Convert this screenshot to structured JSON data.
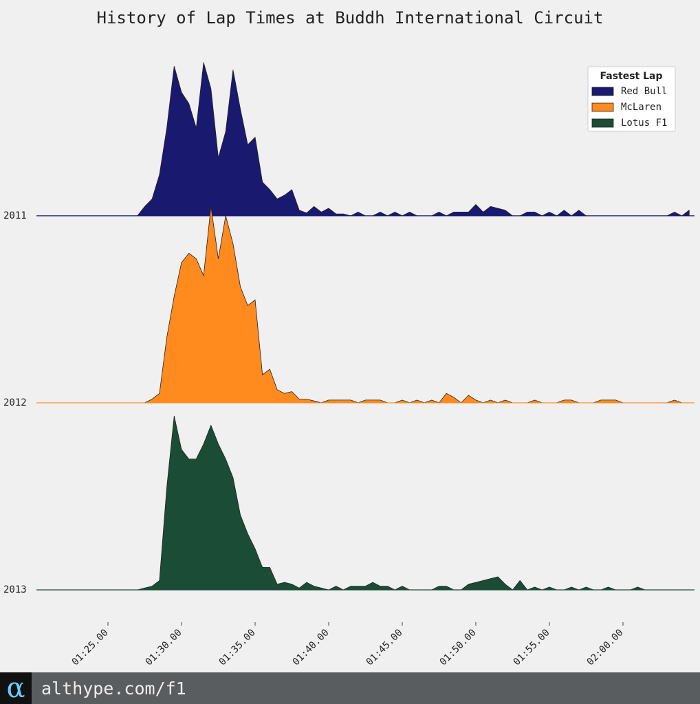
{
  "chart_data": {
    "type": "ridgeline",
    "title": "History of Lap Times at Buddh International Circuit",
    "x": [
      84,
      84.5,
      85,
      85.5,
      86,
      86.5,
      87,
      87.5,
      88,
      88.5,
      89,
      89.5,
      90,
      90.5,
      91,
      91.5,
      92,
      92.5,
      93,
      93.5,
      94,
      94.5,
      95,
      95.5,
      96,
      96.5,
      97,
      97.5,
      98,
      98.5,
      99,
      99.5,
      100,
      100.5,
      101,
      101.5,
      102,
      102.5,
      103,
      103.5,
      104,
      104.5,
      105,
      105.5,
      106,
      106.5,
      107,
      107.5,
      108,
      108.5,
      109,
      109.5,
      110,
      110.5,
      111,
      111.5,
      112,
      112.5,
      113,
      113.5,
      114,
      114.5,
      115,
      115.5,
      116,
      116.5,
      117,
      117.5,
      118,
      118.5,
      119,
      119.5,
      120,
      120.5,
      121,
      121.5,
      122,
      122.5,
      123,
      123.5,
      124,
      124.5
    ],
    "series": [
      {
        "name": "Red Bull",
        "color": "#191970",
        "values": [
          0,
          0,
          0,
          0,
          0,
          0,
          0,
          0.05,
          0.09,
          0.22,
          0.47,
          0.8,
          0.66,
          0.6,
          0.47,
          0.82,
          0.68,
          0.31,
          0.45,
          0.78,
          0.57,
          0.38,
          0.42,
          0.18,
          0.14,
          0.09,
          0.11,
          0.14,
          0.03,
          0.015,
          0.05,
          0.02,
          0.04,
          0.01,
          0.01,
          0,
          0.02,
          0,
          0,
          0.02,
          0,
          0.02,
          0,
          0.02,
          0,
          0,
          0,
          0.02,
          0,
          0.02,
          0.02,
          0.02,
          0.06,
          0.02,
          0.05,
          0.04,
          0.03,
          0,
          0,
          0.02,
          0.02,
          0,
          0.02,
          0,
          0.03,
          0,
          0.03,
          0,
          0,
          0,
          0,
          0,
          0,
          0,
          0,
          0,
          0,
          0,
          0,
          0.02,
          0,
          0.03
        ]
      },
      {
        "name": "McLaren",
        "color": "#ff8a1e",
        "values": [
          0,
          0,
          0,
          0,
          0,
          0,
          0,
          0,
          0.02,
          0.05,
          0.35,
          0.57,
          0.75,
          0.8,
          0.77,
          0.68,
          1.05,
          0.77,
          1.0,
          0.85,
          0.62,
          0.52,
          0.55,
          0.15,
          0.18,
          0.07,
          0.05,
          0.06,
          0.02,
          0.02,
          0.01,
          0,
          0.015,
          0.015,
          0.015,
          0.015,
          0,
          0.015,
          0.015,
          0.015,
          0,
          0,
          0.015,
          0,
          0.015,
          0,
          0.015,
          0,
          0.05,
          0.03,
          0,
          0.04,
          0.015,
          0,
          0.015,
          0,
          0.015,
          0,
          0,
          0,
          0.015,
          0,
          0,
          0,
          0.015,
          0.015,
          0,
          0,
          0,
          0.015,
          0.015,
          0.015,
          0,
          0,
          0,
          0,
          0,
          0,
          0,
          0.015,
          0,
          0
        ]
      },
      {
        "name": "Lotus F1",
        "color": "#1b4d36",
        "values": [
          0,
          0,
          0,
          0,
          0,
          0,
          0,
          0.01,
          0.02,
          0.05,
          0.55,
          0.93,
          0.75,
          0.7,
          0.7,
          0.78,
          0.88,
          0.78,
          0.7,
          0.6,
          0.4,
          0.3,
          0.22,
          0.12,
          0.12,
          0.03,
          0.04,
          0.03,
          0.01,
          0.04,
          0.02,
          0.01,
          0,
          0.02,
          0,
          0.02,
          0.02,
          0.02,
          0.04,
          0.02,
          0.02,
          0,
          0.02,
          0,
          0,
          0,
          0,
          0.02,
          0.02,
          0,
          0,
          0.03,
          0.04,
          0.05,
          0.06,
          0.07,
          0.03,
          0,
          0.05,
          0,
          0.015,
          0,
          0.015,
          0,
          0,
          0.015,
          0,
          0.015,
          0,
          0,
          0.015,
          0,
          0,
          0,
          0.015,
          0,
          0,
          0,
          0,
          0,
          0,
          0
        ]
      }
    ],
    "xlim": [
      80.14,
      124.86
    ],
    "xticks": [
      {
        "value": 85,
        "label": "01:25.00"
      },
      {
        "value": 90,
        "label": "01:30.00"
      },
      {
        "value": 95,
        "label": "01:35.00"
      },
      {
        "value": 100,
        "label": "01:40.00"
      },
      {
        "value": 105,
        "label": "01:45.00"
      },
      {
        "value": 110,
        "label": "01:50.00"
      },
      {
        "value": 115,
        "label": "01:55.00"
      },
      {
        "value": 120,
        "label": "02:00.00"
      }
    ],
    "ylim": [
      0,
      2.9
    ],
    "yticks": [
      {
        "value": 2,
        "label": "2011"
      },
      {
        "value": 1,
        "label": "2012"
      },
      {
        "value": 0,
        "label": "2013"
      }
    ],
    "legend": {
      "title": "Fastest Lap",
      "position": "upper right"
    }
  },
  "footer": {
    "logo": "α",
    "text": "althype.com/f1"
  }
}
